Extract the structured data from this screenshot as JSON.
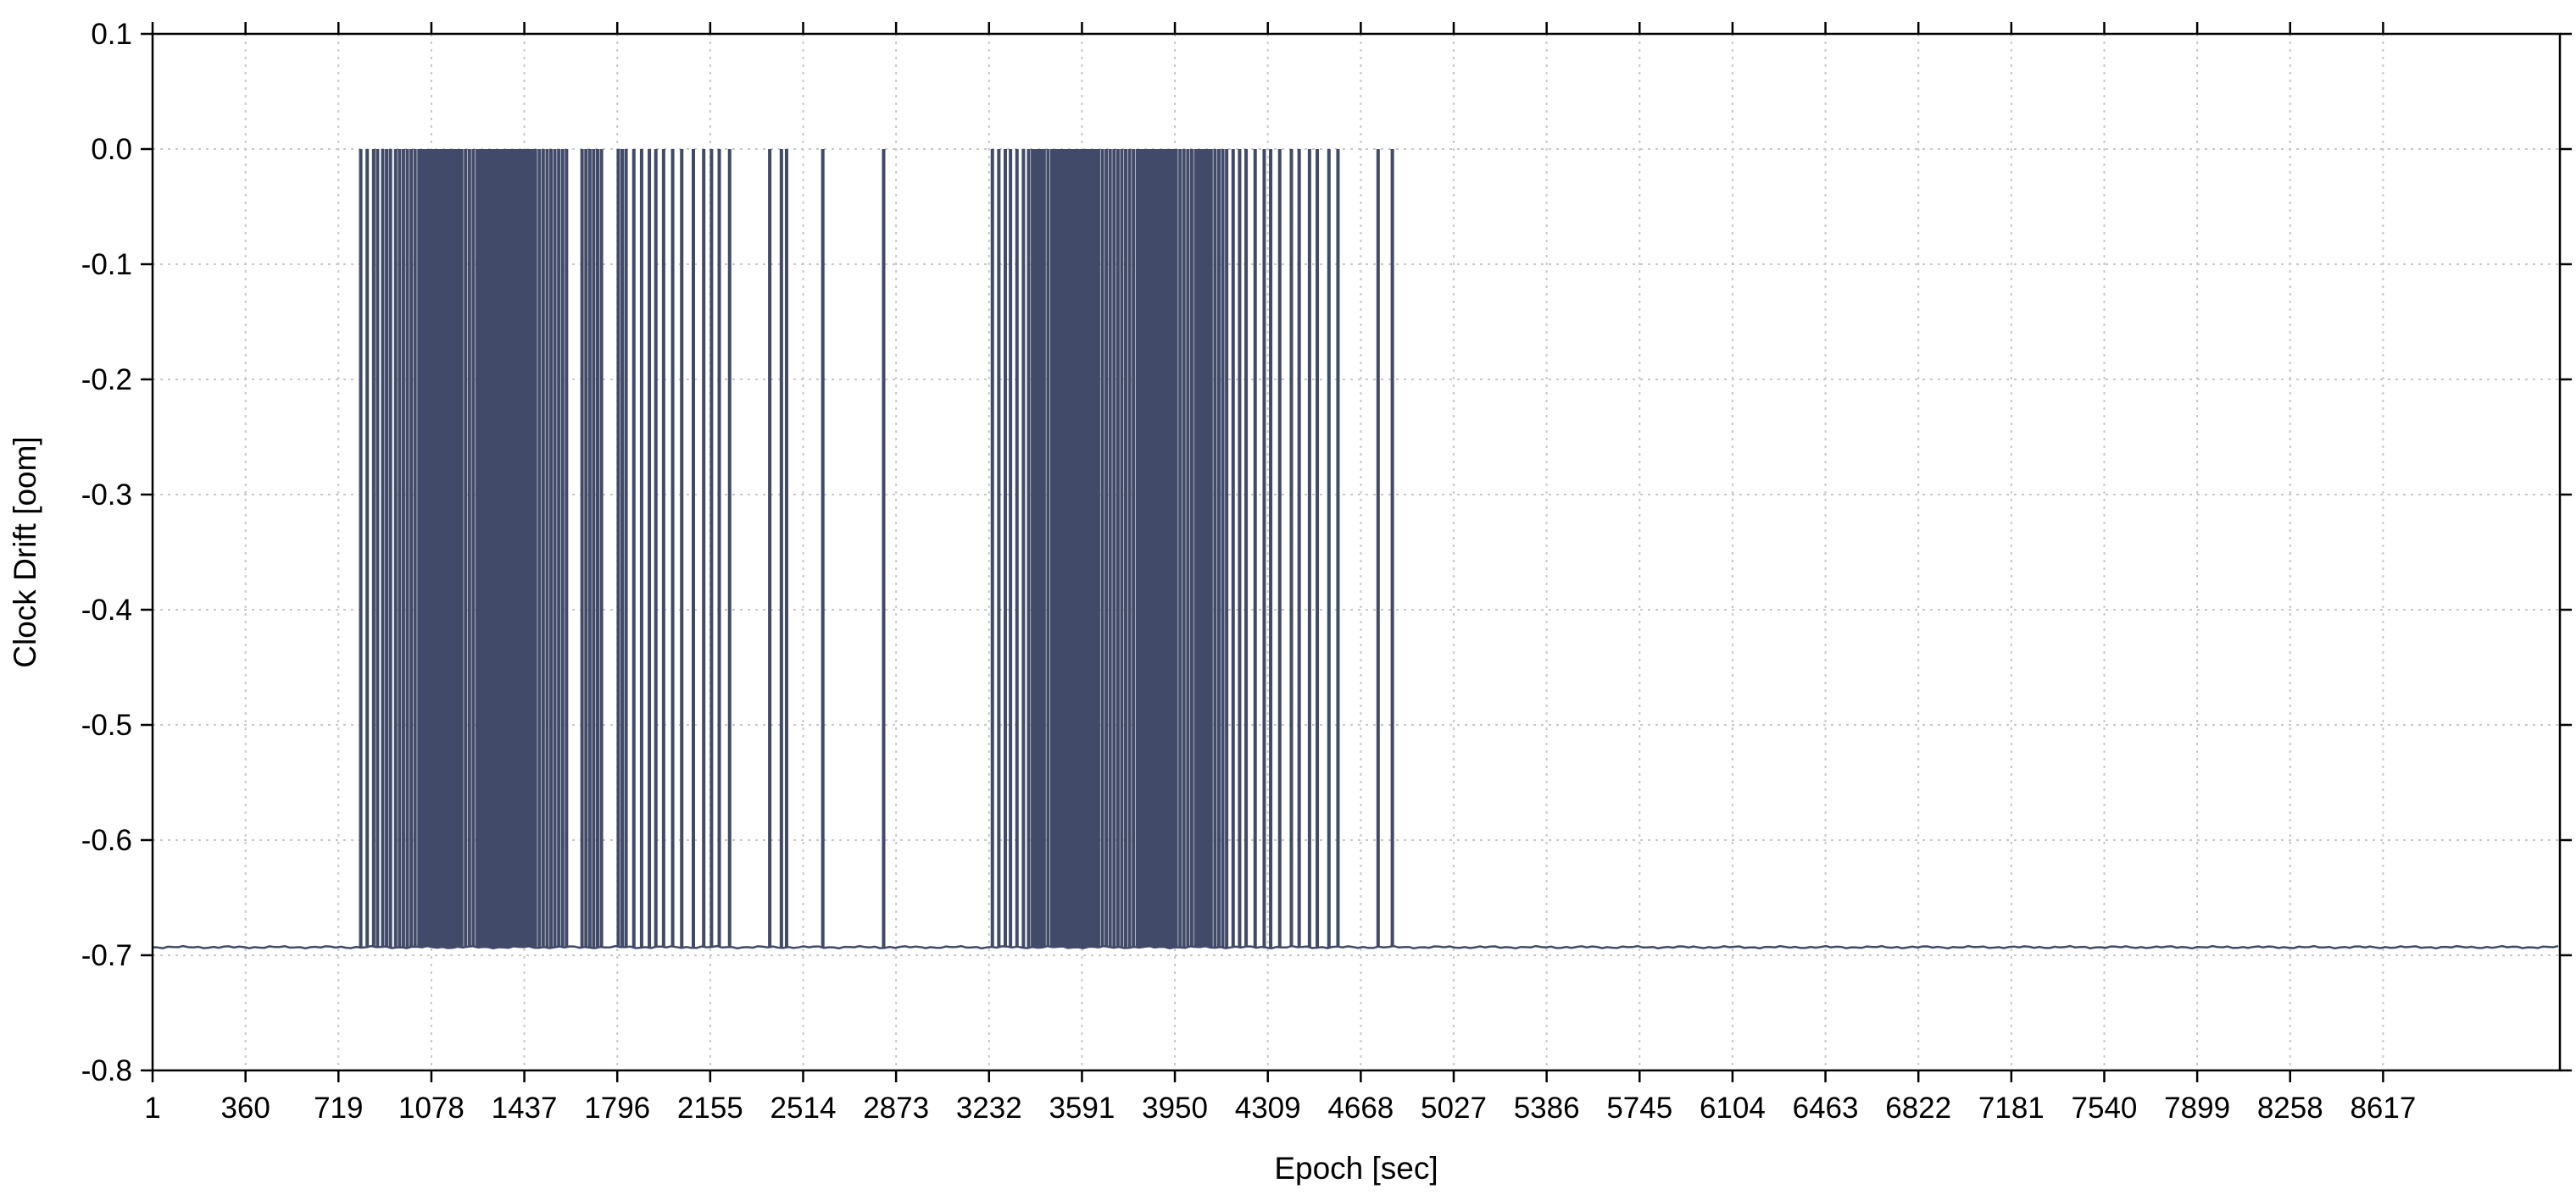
{
  "chart_data": {
    "type": "line",
    "title": "",
    "xlabel": "Epoch [sec]",
    "ylabel": "Clock Drift [oom]",
    "xlim": [
      1,
      9300
    ],
    "ylim": [
      -0.8,
      0.1
    ],
    "xticks": [
      1,
      360,
      719,
      1078,
      1437,
      1796,
      2155,
      2514,
      2873,
      3232,
      3591,
      3950,
      4309,
      4668,
      5027,
      5386,
      5745,
      6104,
      6463,
      6822,
      7181,
      7540,
      7899,
      8258,
      8617
    ],
    "yticks": [
      0.1,
      0.0,
      -0.1,
      -0.2,
      -0.3,
      -0.4,
      -0.5,
      -0.6,
      -0.7,
      -0.8
    ],
    "ytick_labels": [
      "0.1",
      "0.0",
      "-0.1",
      "-0.2",
      "-0.3",
      "-0.4",
      "-0.5",
      "-0.6",
      "-0.7",
      "-0.8"
    ],
    "grid": true,
    "line_color": "#414a68",
    "baseline": -0.693,
    "spike_value": 0.0,
    "spike_epochs": [
      805,
      830,
      855,
      870,
      890,
      905,
      920,
      940,
      955,
      970,
      985,
      1000,
      1015,
      1030,
      1045,
      1060,
      1075,
      1090,
      1105,
      1120,
      1135,
      1150,
      1165,
      1180,
      1195,
      1210,
      1225,
      1240,
      1255,
      1270,
      1285,
      1300,
      1315,
      1330,
      1345,
      1360,
      1375,
      1390,
      1405,
      1420,
      1435,
      1450,
      1465,
      1480,
      1495,
      1510,
      1525,
      1540,
      1555,
      1570,
      1585,
      1600,
      1660,
      1675,
      1690,
      1705,
      1720,
      1735,
      1800,
      1815,
      1830,
      1860,
      1890,
      1920,
      1945,
      1975,
      2010,
      2045,
      2090,
      2130,
      2160,
      2190,
      2230,
      2385,
      2430,
      2450,
      2590,
      2825,
      3245,
      3270,
      3295,
      3315,
      3340,
      3365,
      3385,
      3400,
      3415,
      3430,
      3445,
      3460,
      3475,
      3490,
      3505,
      3520,
      3535,
      3550,
      3565,
      3580,
      3595,
      3610,
      3625,
      3640,
      3655,
      3670,
      3685,
      3700,
      3715,
      3730,
      3745,
      3760,
      3775,
      3790,
      3805,
      3820,
      3835,
      3850,
      3865,
      3880,
      3895,
      3910,
      3925,
      3940,
      3955,
      3970,
      3985,
      4000,
      4015,
      4030,
      4045,
      4060,
      4075,
      4090,
      4105,
      4120,
      4135,
      4150,
      4175,
      4200,
      4225,
      4260,
      4295,
      4320,
      4355,
      4400,
      4430,
      4470,
      4500,
      4545,
      4580,
      4735,
      4790
    ]
  }
}
